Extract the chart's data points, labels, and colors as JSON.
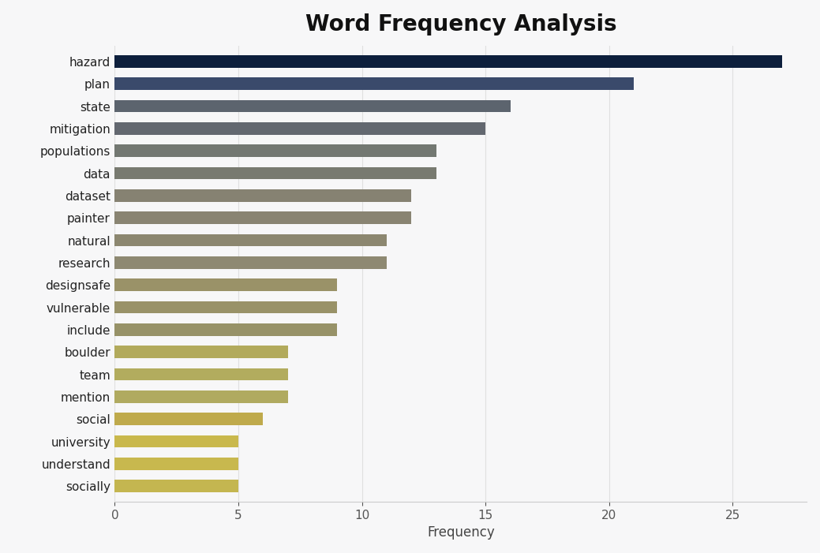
{
  "title": "Word Frequency Analysis",
  "xlabel": "Frequency",
  "categories": [
    "hazard",
    "plan",
    "state",
    "mitigation",
    "populations",
    "data",
    "dataset",
    "painter",
    "natural",
    "research",
    "designsafe",
    "vulnerable",
    "include",
    "boulder",
    "team",
    "mention",
    "social",
    "university",
    "understand",
    "socially"
  ],
  "values": [
    27,
    21,
    16,
    15,
    13,
    13,
    12,
    12,
    11,
    11,
    9,
    9,
    9,
    7,
    7,
    7,
    6,
    5,
    5,
    5
  ],
  "bar_colors": [
    "#0d1f3c",
    "#3a4a6b",
    "#5c646e",
    "#636870",
    "#737872",
    "#787a70",
    "#868272",
    "#898472",
    "#8c8770",
    "#8e8972",
    "#9a9268",
    "#999268",
    "#979268",
    "#b2aa5c",
    "#b2ac5e",
    "#b0aa60",
    "#bfaa4c",
    "#c9b84c",
    "#c8b84e",
    "#c4b650"
  ],
  "background_color": "#f7f7f8",
  "xlim": [
    0,
    28
  ],
  "title_fontsize": 20,
  "label_fontsize": 12,
  "tick_fontsize": 11,
  "bar_height": 0.55,
  "figsize": [
    10.39,
    7.01
  ],
  "dpi": 100
}
